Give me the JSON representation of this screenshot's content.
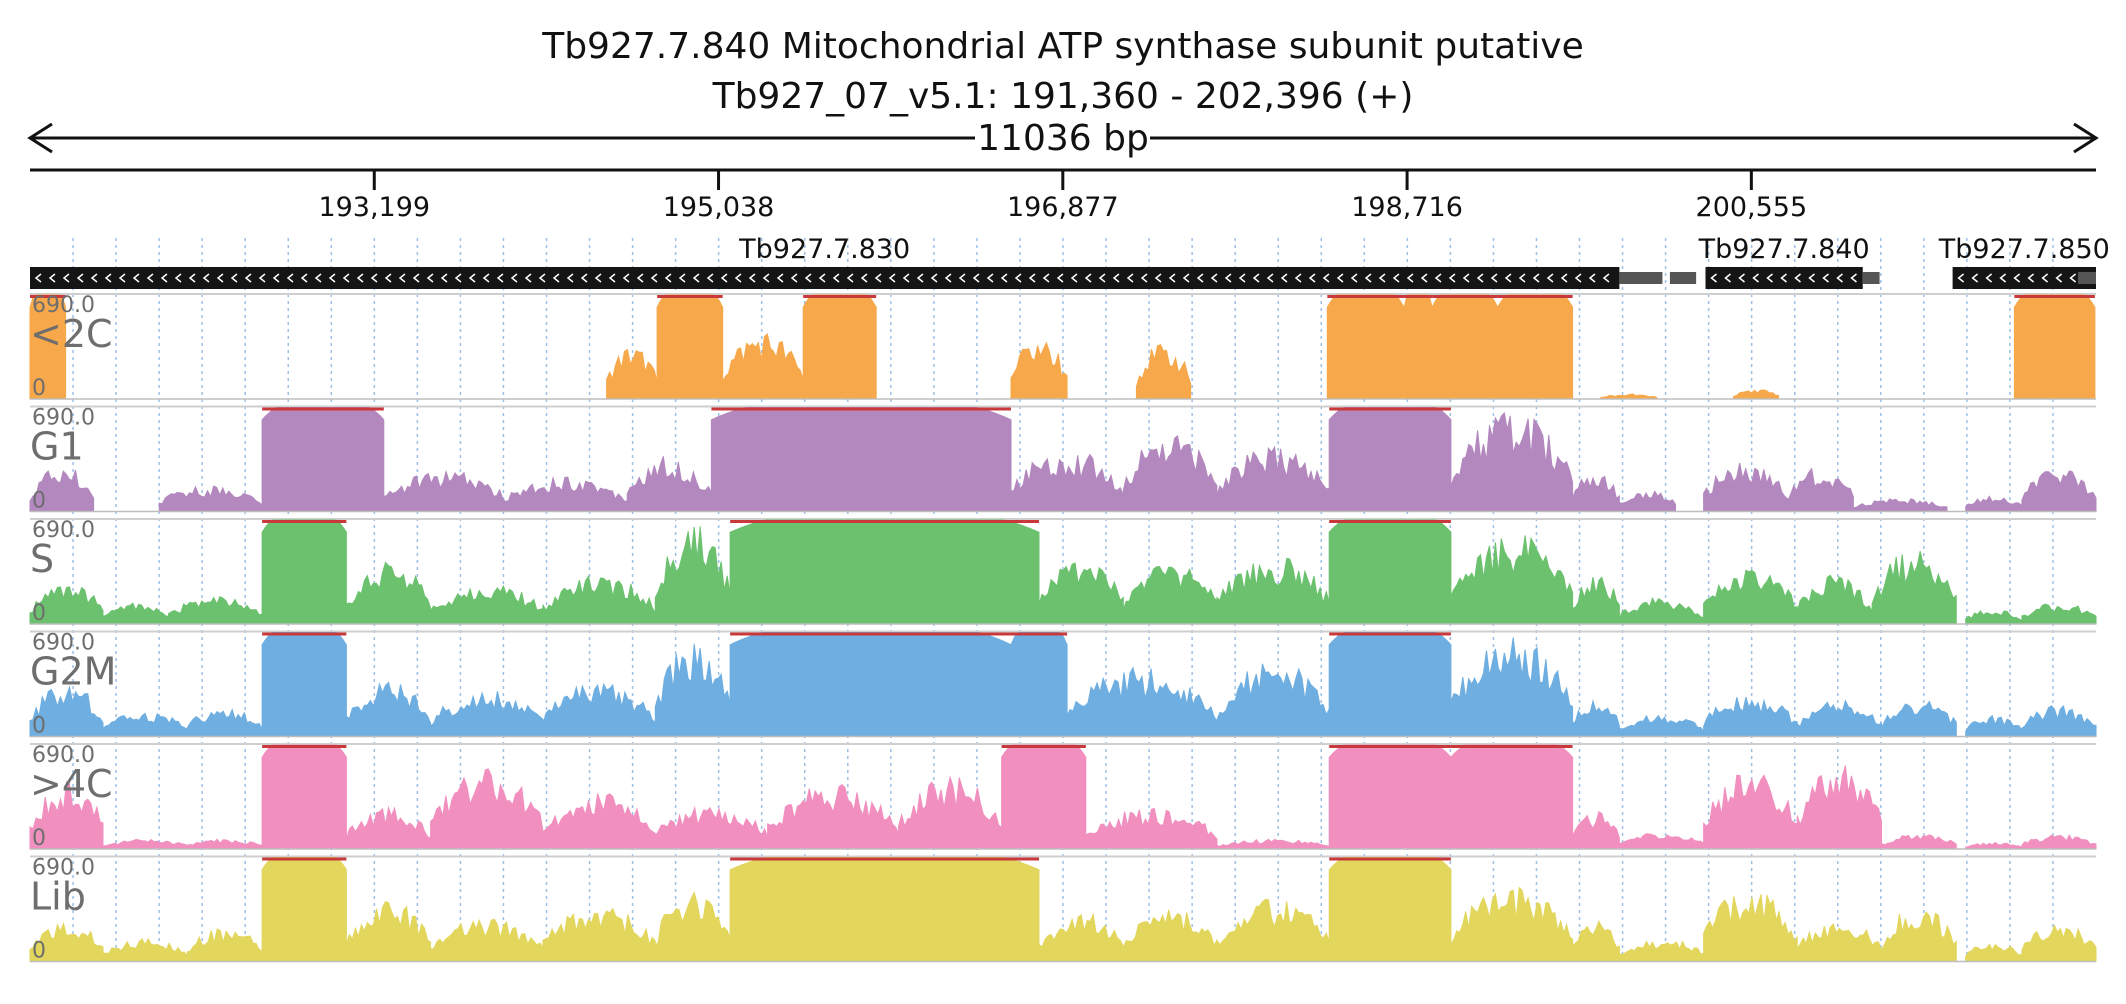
{
  "header": {
    "title": "Tb927.7.840  Mitochondrial ATP synthase subunit  putative",
    "subtitle": "Tb927_07_v5.1: 191,360 - 202,396 (+)",
    "span_label": "11036 bp"
  },
  "chart_data": {
    "type": "area",
    "x_range": [
      191360,
      202396
    ],
    "y_range": [
      0,
      690
    ],
    "grid": true,
    "x_ticks": [
      193199,
      195038,
      196877,
      198716,
      200555
    ],
    "x_tick_labels": [
      "193,199",
      "195,038",
      "196,877",
      "198,716",
      "200,555"
    ],
    "genes": [
      {
        "name": "Tb927.7.830",
        "start": 191360,
        "end": 199850,
        "strand": "-"
      },
      {
        "name": "Tb927.7.840",
        "start": 200310,
        "end": 201150,
        "strand": "-"
      },
      {
        "name": "Tb927.7.850",
        "start": 201630,
        "end": 202396,
        "strand": "-"
      }
    ],
    "tracks": [
      {
        "label": "<2C",
        "max_label": "690.0",
        "min_label": "0",
        "color": "#f7a84a",
        "peaks": [
          [
            191360,
            191550,
            690
          ],
          [
            194440,
            194710,
            330
          ],
          [
            194710,
            195060,
            690
          ],
          [
            195060,
            195490,
            420
          ],
          [
            195490,
            195880,
            690
          ],
          [
            196600,
            196900,
            380
          ],
          [
            197270,
            197560,
            340
          ],
          [
            198290,
            198700,
            690
          ],
          [
            198700,
            198850,
            690
          ],
          [
            198850,
            199200,
            690
          ],
          [
            199200,
            199600,
            690
          ],
          [
            199750,
            200050,
            30
          ],
          [
            200460,
            200700,
            60
          ],
          [
            201960,
            202390,
            690
          ]
        ]
      },
      {
        "label": "G1",
        "max_label": "690.0",
        "min_label": "0",
        "color": "#b388be",
        "peaks": [
          [
            191360,
            191700,
            280
          ],
          [
            192050,
            192600,
            160
          ],
          [
            192600,
            193250,
            690
          ],
          [
            193250,
            193900,
            250
          ],
          [
            193900,
            194550,
            220
          ],
          [
            194550,
            195000,
            340
          ],
          [
            195000,
            196600,
            690
          ],
          [
            196600,
            197200,
            380
          ],
          [
            197200,
            197700,
            490
          ],
          [
            197700,
            198300,
            390
          ],
          [
            198300,
            198950,
            690
          ],
          [
            198950,
            199600,
            600
          ],
          [
            199600,
            199850,
            260
          ],
          [
            199850,
            200150,
            140
          ],
          [
            200300,
            200750,
            300
          ],
          [
            200750,
            201100,
            270
          ],
          [
            201100,
            201600,
            80
          ],
          [
            201700,
            202000,
            100
          ],
          [
            202000,
            202396,
            270
          ]
        ]
      },
      {
        "label": "S",
        "max_label": "690.0",
        "min_label": "0",
        "color": "#6cc16f",
        "peaks": [
          [
            191360,
            191750,
            250
          ],
          [
            191750,
            192100,
            140
          ],
          [
            192100,
            192600,
            170
          ],
          [
            192600,
            193050,
            690
          ],
          [
            193050,
            193500,
            380
          ],
          [
            193500,
            194100,
            250
          ],
          [
            194100,
            194700,
            300
          ],
          [
            194700,
            195100,
            620
          ],
          [
            195100,
            196750,
            690
          ],
          [
            196750,
            197200,
            420
          ],
          [
            197200,
            197700,
            380
          ],
          [
            197700,
            198300,
            420
          ],
          [
            198300,
            198950,
            690
          ],
          [
            198950,
            199600,
            560
          ],
          [
            199600,
            199850,
            330
          ],
          [
            199850,
            200300,
            160
          ],
          [
            200300,
            200800,
            330
          ],
          [
            200800,
            201200,
            300
          ],
          [
            201200,
            201650,
            450
          ],
          [
            201700,
            202000,
            90
          ],
          [
            202000,
            202396,
            130
          ]
        ]
      },
      {
        "label": "G2M",
        "max_label": "690.0",
        "min_label": "0",
        "color": "#6eaee0",
        "peaks": [
          [
            191360,
            191750,
            320
          ],
          [
            191750,
            192200,
            150
          ],
          [
            192200,
            192600,
            180
          ],
          [
            192600,
            193050,
            690
          ],
          [
            193050,
            193500,
            330
          ],
          [
            193500,
            194100,
            280
          ],
          [
            194100,
            194700,
            330
          ],
          [
            194700,
            195100,
            570
          ],
          [
            195100,
            196600,
            690
          ],
          [
            196600,
            196900,
            690
          ],
          [
            196900,
            197700,
            420
          ],
          [
            197700,
            198300,
            460
          ],
          [
            198300,
            198950,
            690
          ],
          [
            198950,
            199600,
            600
          ],
          [
            199600,
            199850,
            240
          ],
          [
            199850,
            200300,
            140
          ],
          [
            200300,
            200800,
            260
          ],
          [
            200800,
            201250,
            220
          ],
          [
            201250,
            201650,
            230
          ],
          [
            201700,
            202000,
            130
          ],
          [
            202000,
            202396,
            190
          ]
        ]
      },
      {
        "label": ">4C",
        "max_label": "690.0",
        "min_label": "0",
        "color": "#f18fbf",
        "peaks": [
          [
            191360,
            191750,
            420
          ],
          [
            191750,
            192200,
            60
          ],
          [
            192200,
            192600,
            60
          ],
          [
            192600,
            193050,
            690
          ],
          [
            193050,
            193500,
            250
          ],
          [
            193500,
            194100,
            490
          ],
          [
            194100,
            194700,
            340
          ],
          [
            194700,
            195300,
            270
          ],
          [
            195300,
            196000,
            400
          ],
          [
            196000,
            196550,
            440
          ],
          [
            196550,
            197000,
            690
          ],
          [
            197000,
            197700,
            250
          ],
          [
            197700,
            198300,
            60
          ],
          [
            198300,
            198950,
            690
          ],
          [
            198950,
            199600,
            690
          ],
          [
            199600,
            199850,
            230
          ],
          [
            199850,
            200300,
            100
          ],
          [
            200300,
            200800,
            470
          ],
          [
            200800,
            201250,
            520
          ],
          [
            201250,
            201650,
            90
          ],
          [
            201700,
            202000,
            40
          ],
          [
            202000,
            202396,
            90
          ]
        ]
      },
      {
        "label": "Lib",
        "max_label": "690.0",
        "min_label": "0",
        "color": "#e2d65c",
        "peaks": [
          [
            191360,
            191750,
            250
          ],
          [
            191750,
            192200,
            140
          ],
          [
            192200,
            192600,
            210
          ],
          [
            192600,
            193050,
            690
          ],
          [
            193050,
            193500,
            380
          ],
          [
            193500,
            194100,
            260
          ],
          [
            194100,
            194700,
            340
          ],
          [
            194700,
            195100,
            420
          ],
          [
            195100,
            196750,
            690
          ],
          [
            196750,
            197200,
            300
          ],
          [
            197200,
            197700,
            330
          ],
          [
            197700,
            198300,
            380
          ],
          [
            198300,
            198950,
            690
          ],
          [
            198950,
            199600,
            450
          ],
          [
            199600,
            199850,
            270
          ],
          [
            199850,
            200300,
            140
          ],
          [
            200300,
            200800,
            450
          ],
          [
            200800,
            201250,
            260
          ],
          [
            201250,
            201650,
            340
          ],
          [
            201700,
            202000,
            120
          ],
          [
            202000,
            202396,
            230
          ]
        ]
      }
    ]
  }
}
